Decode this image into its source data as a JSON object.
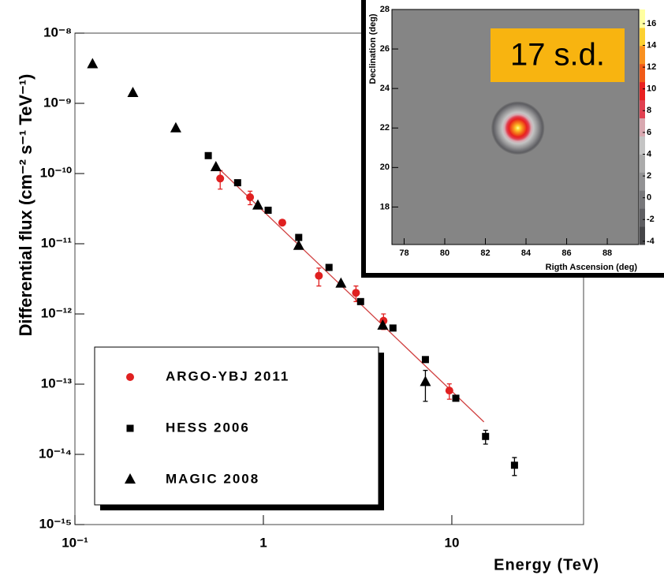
{
  "chart_data": [
    {
      "type": "scatter",
      "x_label": "Energy (TeV)",
      "y_label": "Differential flux (cm⁻² s⁻¹ TeV⁻¹)",
      "log_x": true,
      "log_y": true,
      "xlim": [
        0.1,
        50
      ],
      "ylim": [
        1e-15,
        1e-08
      ],
      "xticks": [
        {
          "value": 0.1,
          "label": "10⁻¹"
        },
        1,
        10
      ],
      "yticks": [
        {
          "value": 1e-15,
          "label": "10⁻¹⁵"
        },
        {
          "value": 1e-14,
          "label": "10⁻¹⁴"
        },
        {
          "value": 1e-13,
          "label": "10⁻¹³"
        },
        {
          "value": 1e-12,
          "label": "10⁻¹²"
        },
        {
          "value": 1e-11,
          "label": "10⁻¹¹"
        },
        {
          "value": 1e-10,
          "label": "10⁻¹⁰"
        },
        {
          "value": 1e-09,
          "label": "10⁻⁹"
        },
        {
          "value": 1e-08,
          "label": "10⁻⁸"
        }
      ],
      "legend": "lower left",
      "series": [
        {
          "name": "ARGO-YBJ 2011",
          "color": "#e02020",
          "marker": "circle",
          "x": [
            0.59,
            0.85,
            1.26,
            1.97,
            3.1,
            4.34,
            9.7
          ],
          "values": [
            8.5e-11,
            4.6e-11,
            2e-11,
            3.5e-12,
            2e-12,
            8e-13,
            8.1e-14
          ],
          "errors": [
            2.5e-11,
            1e-11,
            null,
            1e-12,
            5e-13,
            2e-13,
            2e-14
          ]
        },
        {
          "name": "HESS 2006",
          "color": "#000000",
          "marker": "square",
          "x": [
            0.51,
            0.73,
            1.06,
            1.54,
            2.23,
            3.28,
            4.87,
            7.24,
            10.5,
            15.1,
            21.5
          ],
          "values": [
            1.8e-10,
            7.4e-11,
            3e-11,
            1.23e-11,
            4.6e-12,
            1.5e-12,
            6.3e-13,
            2.24e-13,
            6.3e-14,
            1.8e-14,
            7e-15
          ],
          "errors": [
            null,
            null,
            null,
            null,
            null,
            null,
            null,
            null,
            null,
            4e-15,
            2e-15
          ]
        },
        {
          "name": "MAGIC 2008",
          "color": "#000000",
          "marker": "triangle",
          "x": [
            0.124,
            0.203,
            0.343,
            0.56,
            0.935,
            1.54,
            2.58,
            4.3,
            7.24
          ],
          "values": [
            3.6e-09,
            1.4e-09,
            4.4e-10,
            1.23e-10,
            3.5e-11,
            9.3e-12,
            2.7e-12,
            6.8e-13,
            1.07e-13
          ],
          "errors": [
            null,
            null,
            null,
            null,
            null,
            null,
            null,
            null,
            5e-14
          ]
        }
      ],
      "fit": {
        "color": "#d04040",
        "x": [
          0.57,
          14.8
        ],
        "values": [
          1.23e-10,
          2.9e-14
        ]
      }
    },
    {
      "type": "heatmap",
      "x_label": "Rigth Ascension (deg)",
      "y_label": "Declination (deg)",
      "xlim": [
        77.4,
        89.55
      ],
      "ylim": [
        16.1,
        28
      ],
      "xticks": [
        78,
        80,
        82,
        84,
        86,
        88
      ],
      "yticks": [
        18,
        20,
        22,
        24,
        26,
        28
      ],
      "background_color": "#858585",
      "source": {
        "x": 83.6,
        "y": 22.0,
        "value": 17
      },
      "annotation": "17 s.d.",
      "annotation_color": "#f8b410",
      "clim": [
        -4.3,
        17.3
      ],
      "cticks": [
        -4,
        -2,
        0,
        2,
        4,
        6,
        8,
        10,
        12,
        14,
        16
      ],
      "colormap": [
        "#454548",
        "#5e5e62",
        "#77777a",
        "#929294",
        "#ababab",
        "#c4c4c4",
        "#d8a8b0",
        "#e04050",
        "#e82020",
        "#f05a18",
        "#f89020",
        "#fcd030",
        "#ffffa0"
      ]
    }
  ]
}
